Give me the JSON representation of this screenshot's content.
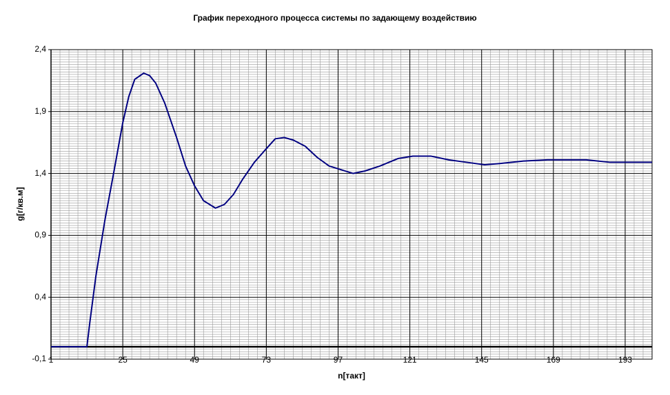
{
  "chart_data": {
    "type": "line",
    "title": "График переходного процесса системы по задающему воздействию",
    "xlabel": "n[такт]",
    "ylabel": "g[г/кв.м]",
    "xlim": [
      1,
      202
    ],
    "xticks": [
      1,
      25,
      49,
      73,
      97,
      121,
      145,
      169,
      193
    ],
    "ylim": [
      -0.1,
      2.4
    ],
    "yticks": [
      {
        "value": -0.1,
        "label": "-0,1"
      },
      {
        "value": 0.4,
        "label": "0,4"
      },
      {
        "value": 0.9,
        "label": "0,9"
      },
      {
        "value": 1.4,
        "label": "1,4"
      },
      {
        "value": 1.9,
        "label": "1,9"
      },
      {
        "value": 2.4,
        "label": "2,4"
      }
    ],
    "grid": true,
    "series": [
      {
        "color": "#000080",
        "x": [
          1,
          13,
          14,
          16,
          19,
          22,
          25,
          27,
          29,
          32,
          34,
          36,
          39,
          43,
          46,
          49,
          52,
          56,
          59,
          62,
          65,
          69,
          73,
          76,
          79,
          82,
          86,
          90,
          94,
          98,
          102,
          106,
          111,
          117,
          122,
          128,
          134,
          140,
          146,
          151,
          159,
          167,
          173,
          180,
          188,
          202
        ],
        "values": [
          0,
          0,
          0.2,
          0.57,
          1.02,
          1.41,
          1.81,
          2.02,
          2.16,
          2.21,
          2.19,
          2.13,
          1.97,
          1.69,
          1.46,
          1.3,
          1.18,
          1.12,
          1.15,
          1.23,
          1.35,
          1.49,
          1.6,
          1.68,
          1.69,
          1.67,
          1.62,
          1.53,
          1.46,
          1.43,
          1.4,
          1.42,
          1.46,
          1.52,
          1.54,
          1.54,
          1.51,
          1.49,
          1.47,
          1.48,
          1.5,
          1.51,
          1.51,
          1.51,
          1.49,
          1.49
        ]
      }
    ]
  }
}
